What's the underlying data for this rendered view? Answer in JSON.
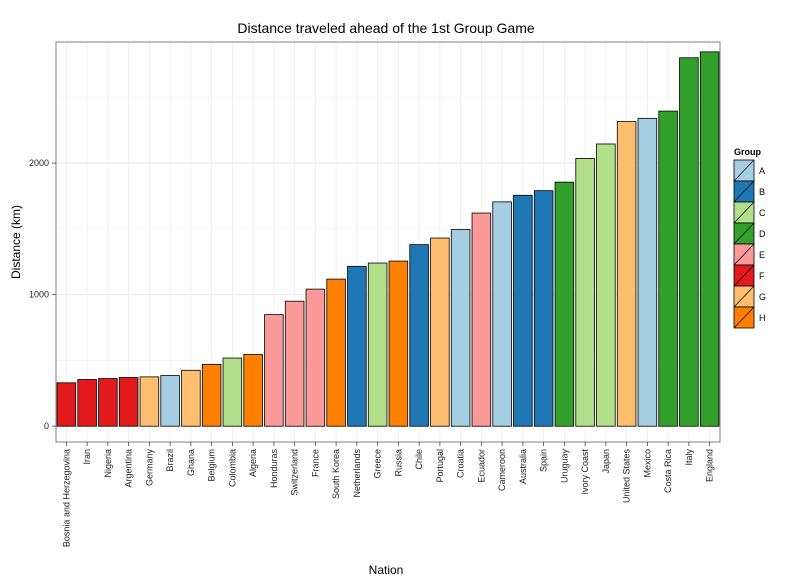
{
  "chart_data": {
    "type": "bar",
    "title": "Distance traveled ahead of the 1st Group Game",
    "xlabel": "Nation",
    "ylabel": "Distance (km)",
    "ylim": [
      -120,
      2920
    ],
    "yticks": [
      0,
      1000,
      2000
    ],
    "grid": true,
    "legend_position": "right",
    "legend_title": "Group",
    "categories": [
      "Bosnia and Herzegovina",
      "Iran",
      "Nigeria",
      "Argentina",
      "Germany",
      "Brazil",
      "Ghana",
      "Belgium",
      "Colombia",
      "Algeria",
      "Honduras",
      "Switzerland",
      "France",
      "South Korea",
      "Netherlands",
      "Greece",
      "Russia",
      "Chile",
      "Portugal",
      "Croatia",
      "Ecuador",
      "Cameroon",
      "Australia",
      "Spain",
      "Uruguay",
      "Ivory Coast",
      "Japan",
      "United States",
      "Mexico",
      "Costa Rica",
      "Italy",
      "England"
    ],
    "values": [
      330,
      355,
      362,
      370,
      375,
      385,
      425,
      470,
      518,
      545,
      848,
      950,
      1042,
      1118,
      1215,
      1240,
      1255,
      1380,
      1430,
      1495,
      1620,
      1705,
      1755,
      1790,
      1855,
      2035,
      2145,
      2315,
      2340,
      2395,
      2800,
      2845
    ],
    "groups": [
      "F",
      "F",
      "F",
      "F",
      "G",
      "A",
      "G",
      "H",
      "C",
      "H",
      "E",
      "E",
      "E",
      "H",
      "B",
      "C",
      "H",
      "B",
      "G",
      "A",
      "E",
      "A",
      "B",
      "B",
      "D",
      "C",
      "C",
      "G",
      "A",
      "D",
      "D",
      "D"
    ],
    "legend": [
      {
        "group": "A",
        "color": "#a6cee3"
      },
      {
        "group": "B",
        "color": "#1f78b4"
      },
      {
        "group": "C",
        "color": "#b2df8a"
      },
      {
        "group": "D",
        "color": "#33a02c"
      },
      {
        "group": "E",
        "color": "#fb9a99"
      },
      {
        "group": "F",
        "color": "#e31a1c"
      },
      {
        "group": "G",
        "color": "#fdbf6f"
      },
      {
        "group": "H",
        "color": "#ff7f00"
      }
    ]
  }
}
